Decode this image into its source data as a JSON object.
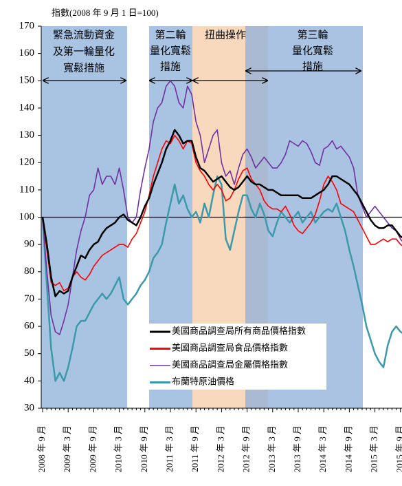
{
  "chart_data": {
    "type": "line",
    "subtitle": "指數(2008 年 9 月 1 日=100)",
    "x": [
      "2008 年 9 月",
      null,
      null,
      null,
      null,
      null,
      "2009 年 3 月",
      null,
      null,
      null,
      null,
      null,
      "2009 年 9 月",
      null,
      null,
      null,
      null,
      null,
      "2010 年 3 月",
      null,
      null,
      null,
      null,
      null,
      "2010 年 9 月",
      null,
      null,
      null,
      null,
      null,
      "2011 年 3 月",
      null,
      null,
      null,
      null,
      null,
      "2011 年 9 月",
      null,
      null,
      null,
      null,
      null,
      "2012 年 3 月",
      null,
      null,
      null,
      null,
      null,
      "2012 年 9 月",
      null,
      null,
      null,
      null,
      null,
      "2013 年 3 月",
      null,
      null,
      null,
      null,
      null,
      "2013 年 9 月",
      null,
      null,
      null,
      null,
      null,
      "2014 年 3 月",
      null,
      null,
      null,
      null,
      null,
      "2014 年 9 月",
      null,
      null,
      null,
      null,
      null,
      "2015 年 3 月",
      null,
      null,
      null,
      null,
      null,
      "2015 年 9 月",
      null
    ],
    "series": [
      {
        "name": "美國商品調查局所有商品價格指數",
        "color": "#000000",
        "values": [
          100,
          90,
          78,
          71,
          73,
          72,
          73,
          78,
          82,
          86,
          85,
          88,
          90,
          91,
          94,
          96,
          97,
          98,
          100,
          101,
          99,
          98,
          97,
          100,
          104,
          107,
          112,
          116,
          120,
          125,
          128,
          132,
          130,
          127,
          128,
          128,
          122,
          118,
          117,
          115,
          113,
          114,
          115,
          113,
          111,
          110,
          111,
          113,
          115,
          113,
          112,
          112,
          111,
          110,
          110,
          109,
          108,
          108,
          108,
          108,
          108,
          107,
          107,
          107,
          108,
          109,
          110,
          112,
          115,
          115,
          114,
          113,
          112,
          110,
          108,
          105,
          102,
          99,
          97,
          96,
          96,
          97,
          97,
          95,
          93,
          92
        ]
      },
      {
        "name": "美國商品調查局食品價格指數",
        "color": "#ff0000",
        "values": [
          100,
          88,
          76,
          75,
          76,
          73,
          74,
          78,
          80,
          78,
          77,
          79,
          82,
          84,
          86,
          87,
          88,
          89,
          90,
          90,
          89,
          92,
          94,
          98,
          102,
          108,
          115,
          120,
          125,
          128,
          127,
          130,
          128,
          125,
          128,
          127,
          120,
          117,
          115,
          112,
          110,
          112,
          110,
          106,
          107,
          110,
          114,
          117,
          118,
          114,
          112,
          110,
          106,
          104,
          103,
          103,
          102,
          104,
          101,
          97,
          95,
          94,
          96,
          98,
          101,
          106,
          112,
          115,
          113,
          110,
          105,
          104,
          103,
          102,
          99,
          96,
          93,
          90,
          90,
          91,
          92,
          91,
          92,
          92,
          90,
          89
        ]
      },
      {
        "name": "美國商品調查局金屬價格指數",
        "color": "#7030a0",
        "values": [
          100,
          80,
          64,
          58,
          57,
          62,
          68,
          78,
          88,
          95,
          100,
          108,
          110,
          118,
          112,
          115,
          115,
          112,
          118,
          110,
          100,
          98,
          100,
          110,
          118,
          125,
          135,
          140,
          142,
          148,
          150,
          148,
          142,
          140,
          148,
          145,
          135,
          130,
          120,
          125,
          130,
          132,
          120,
          115,
          117,
          112,
          118,
          123,
          125,
          122,
          118,
          120,
          122,
          120,
          118,
          118,
          120,
          123,
          128,
          127,
          126,
          128,
          127,
          124,
          120,
          119,
          125,
          126,
          128,
          125,
          126,
          124,
          122,
          118,
          108,
          104,
          100,
          102,
          104,
          102,
          100,
          98,
          96,
          95,
          92,
          90
        ]
      },
      {
        "name": "布蘭特原油價格",
        "color": "#3a9aab",
        "values": [
          100,
          75,
          52,
          40,
          43,
          40,
          45,
          52,
          60,
          62,
          62,
          65,
          68,
          70,
          72,
          70,
          72,
          75,
          78,
          70,
          68,
          70,
          72,
          75,
          77,
          80,
          85,
          87,
          90,
          98,
          105,
          112,
          105,
          108,
          103,
          100,
          102,
          98,
          105,
          100,
          108,
          115,
          112,
          92,
          88,
          95,
          102,
          108,
          108,
          103,
          100,
          105,
          101,
          95,
          93,
          98,
          102,
          100,
          98,
          100,
          102,
          98,
          100,
          102,
          98,
          100,
          102,
          103,
          102,
          105,
          100,
          95,
          88,
          82,
          75,
          68,
          60,
          55,
          50,
          47,
          45,
          53,
          58,
          60,
          58,
          57
        ]
      }
    ],
    "ylim": [
      30,
      170
    ],
    "yticks": [
      30,
      40,
      50,
      60,
      70,
      80,
      90,
      100,
      110,
      120,
      130,
      140,
      150,
      160,
      170
    ],
    "reference_line": 100,
    "annotations": [
      {
        "lines": [
          "緊急流動資金",
          "及第一輪量化",
          "寬鬆措施"
        ]
      },
      {
        "lines": [
          "第二輪",
          "量化寬鬆",
          "措施"
        ]
      },
      {
        "lines": [
          "扭曲操作"
        ]
      },
      {
        "lines": [
          "第三輪",
          "量化寬鬆",
          "措施"
        ]
      }
    ]
  }
}
